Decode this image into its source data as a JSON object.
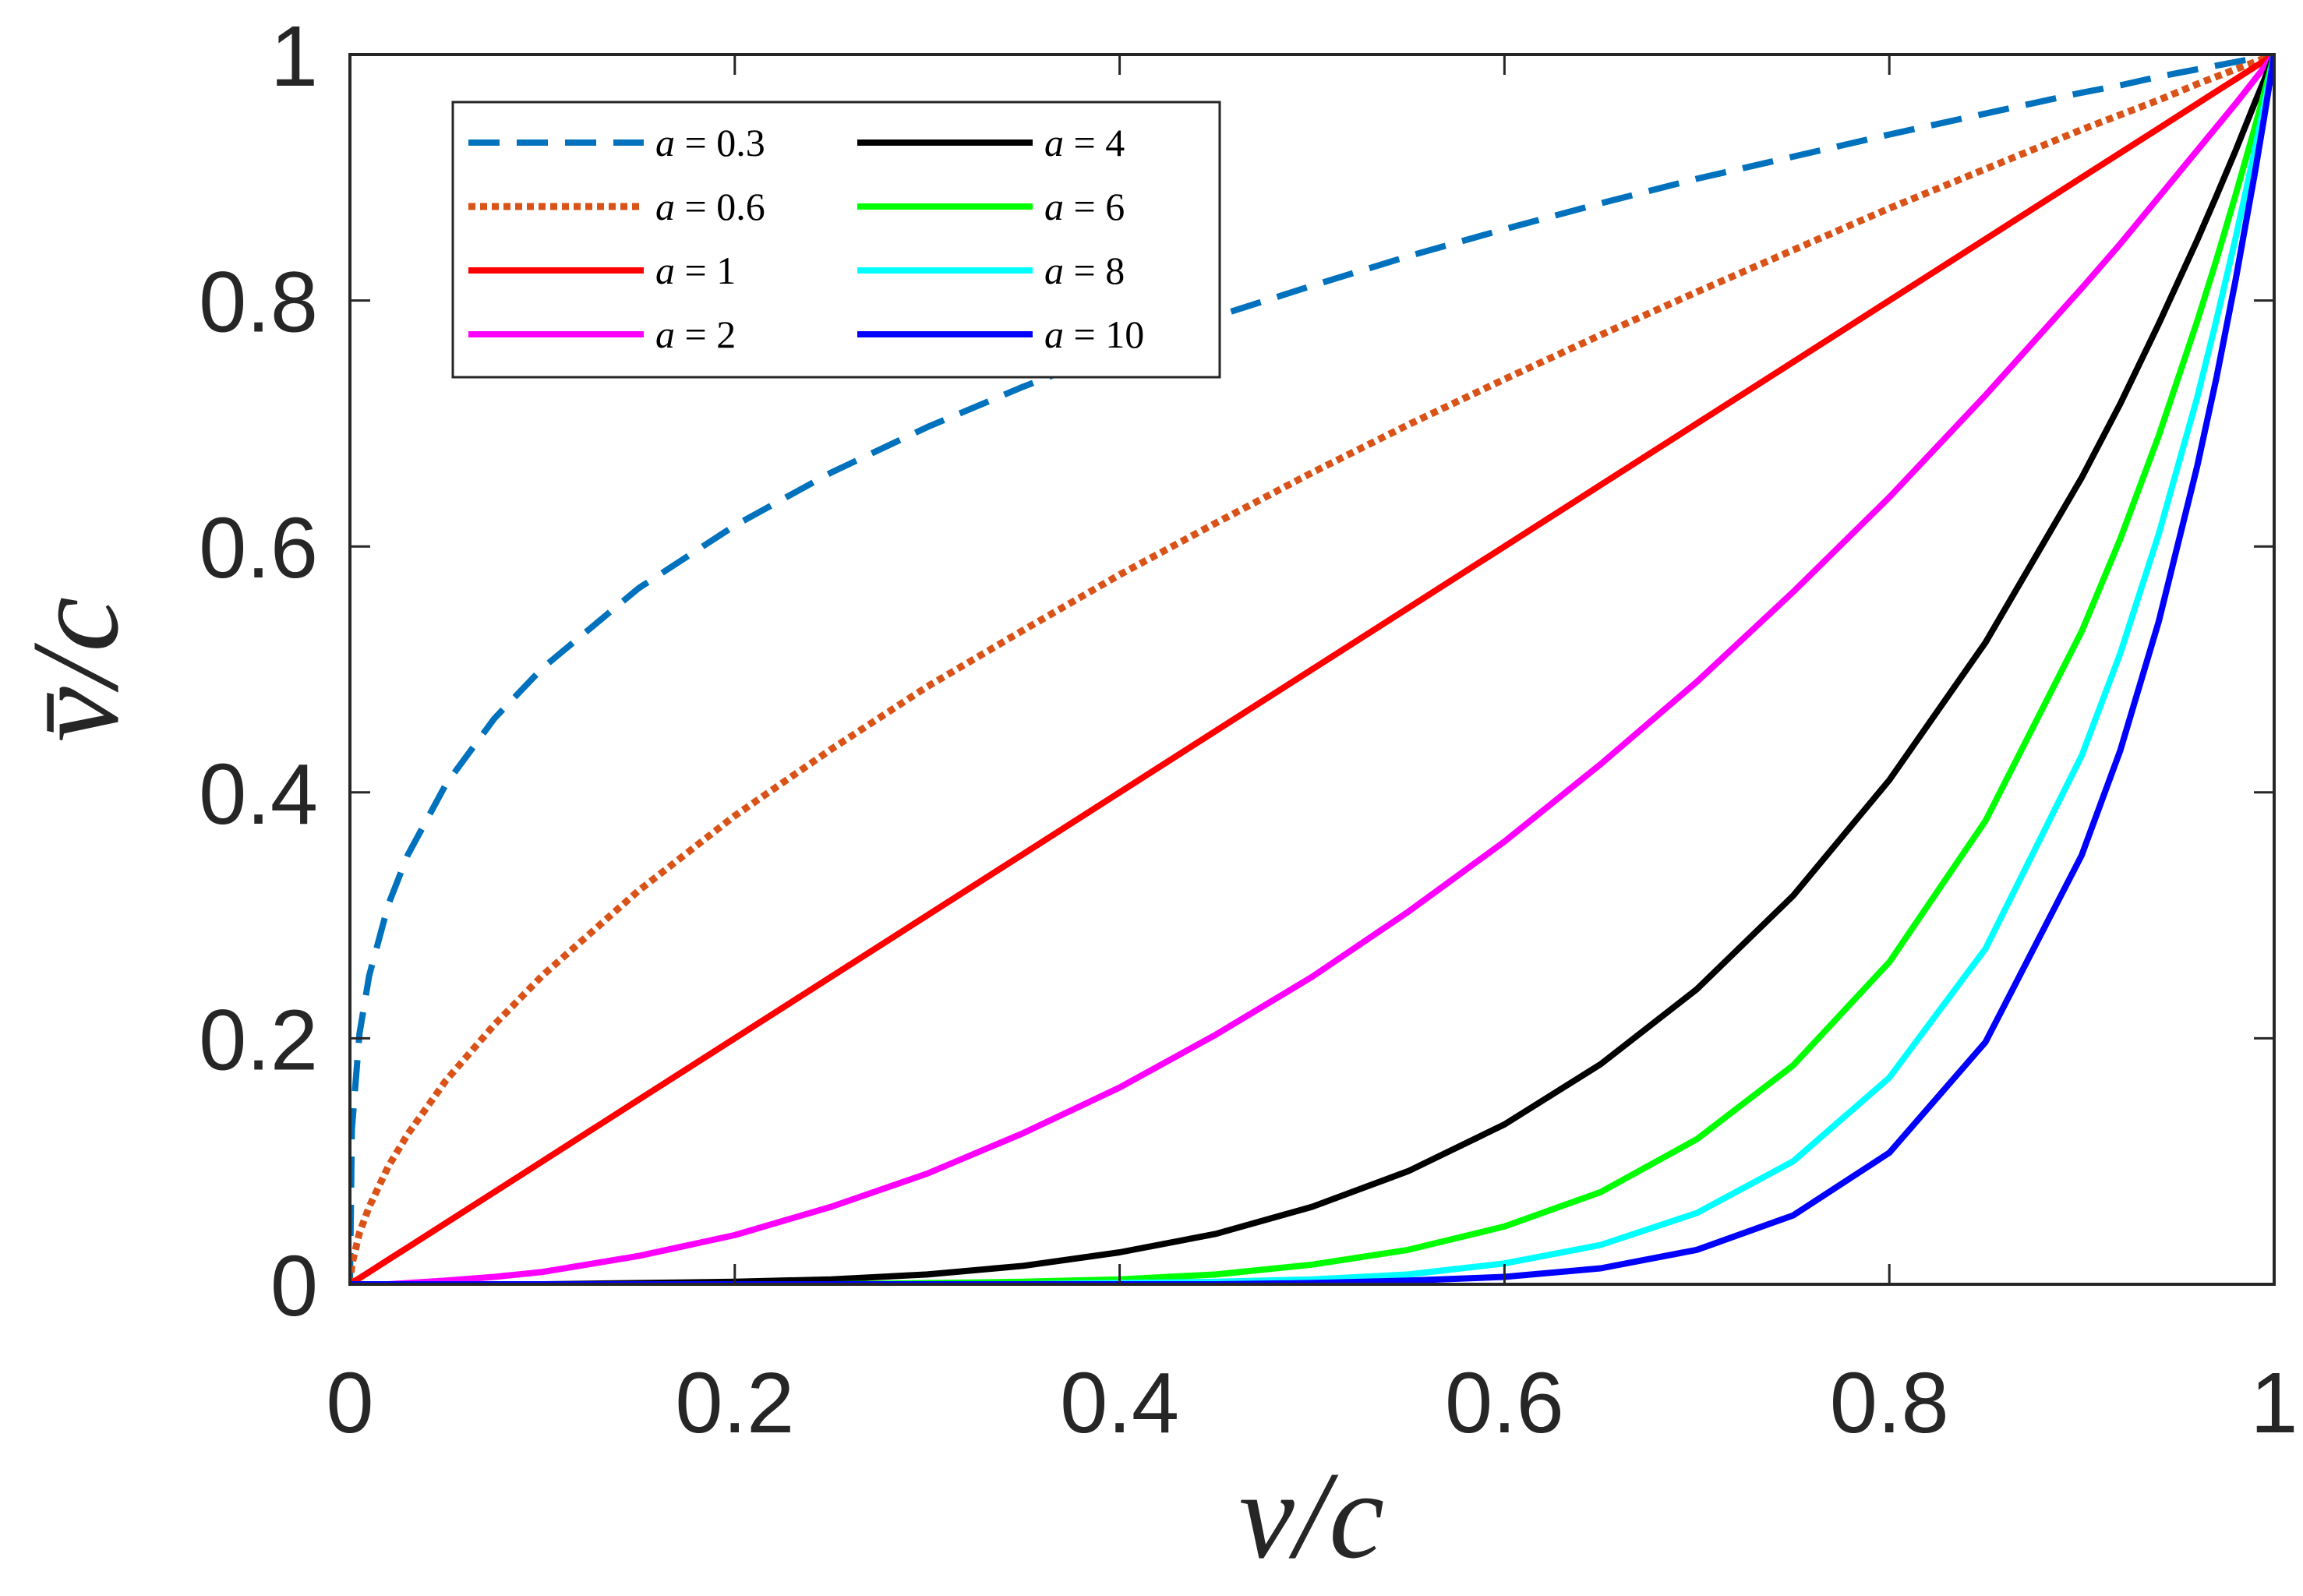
{
  "chart_data": {
    "type": "line",
    "title": "",
    "xlabel": "v/c",
    "ylabel": "v̄/c",
    "xlim": [
      0,
      1
    ],
    "ylim": [
      0,
      1
    ],
    "grid": false,
    "legend_position": "top-left",
    "legend_columns": 2,
    "x_ticks": [
      0,
      0.2,
      0.4,
      0.6,
      0.8,
      1
    ],
    "x_tick_labels": [
      "0",
      "0.2",
      "0.4",
      "0.6",
      "0.8",
      "1"
    ],
    "y_ticks": [
      0,
      0.2,
      0.4,
      0.6,
      0.8,
      1
    ],
    "y_tick_labels": [
      "0",
      "0.2",
      "0.4",
      "0.6",
      "0.8",
      "1"
    ],
    "x": [
      0,
      0.001,
      0.005,
      0.01,
      0.02,
      0.03,
      0.05,
      0.075,
      0.1,
      0.15,
      0.2,
      0.25,
      0.3,
      0.35,
      0.4,
      0.45,
      0.5,
      0.55,
      0.6,
      0.65,
      0.7,
      0.75,
      0.8,
      0.85,
      0.9,
      0.92,
      0.94,
      0.96,
      0.97,
      0.98,
      0.99,
      0.995,
      1.0
    ],
    "series": [
      {
        "name": "a = 0.3",
        "label_var": "a",
        "label_rest": " = 0.3",
        "color": "#0072BD",
        "dash": "dashed",
        "values": [
          0,
          0.126,
          0.204,
          0.251,
          0.309,
          0.349,
          0.407,
          0.46,
          0.501,
          0.566,
          0.617,
          0.66,
          0.697,
          0.73,
          0.76,
          0.787,
          0.812,
          0.836,
          0.858,
          0.879,
          0.899,
          0.917,
          0.935,
          0.952,
          0.969,
          0.975,
          0.982,
          0.988,
          0.991,
          0.994,
          0.997,
          0.998,
          1.0
        ]
      },
      {
        "name": "a = 0.6",
        "label_var": "a",
        "label_rest": " = 0.6",
        "color": "#D95319",
        "dash": "dotted",
        "values": [
          0,
          0.016,
          0.042,
          0.063,
          0.096,
          0.122,
          0.166,
          0.211,
          0.251,
          0.32,
          0.381,
          0.435,
          0.486,
          0.532,
          0.577,
          0.619,
          0.66,
          0.699,
          0.736,
          0.772,
          0.807,
          0.841,
          0.875,
          0.907,
          0.939,
          0.951,
          0.963,
          0.976,
          0.982,
          0.988,
          0.994,
          0.997,
          1.0
        ]
      },
      {
        "name": "a = 1",
        "label_var": "a",
        "label_rest": " = 1",
        "color": "#FF0000",
        "dash": "solid",
        "values": [
          0,
          0.001,
          0.005,
          0.01,
          0.02,
          0.03,
          0.05,
          0.075,
          0.1,
          0.15,
          0.2,
          0.25,
          0.3,
          0.35,
          0.4,
          0.45,
          0.5,
          0.55,
          0.6,
          0.65,
          0.7,
          0.75,
          0.8,
          0.85,
          0.9,
          0.92,
          0.94,
          0.96,
          0.97,
          0.98,
          0.99,
          0.995,
          1.0
        ]
      },
      {
        "name": "a = 2",
        "label_var": "a",
        "label_rest": " = 2",
        "color": "#FF00FF",
        "dash": "solid",
        "values": [
          0,
          0.0,
          0.0,
          0.0,
          0.0,
          0.001,
          0.003,
          0.006,
          0.01,
          0.023,
          0.04,
          0.063,
          0.09,
          0.123,
          0.16,
          0.203,
          0.25,
          0.303,
          0.36,
          0.423,
          0.49,
          0.563,
          0.64,
          0.723,
          0.81,
          0.846,
          0.884,
          0.922,
          0.941,
          0.96,
          0.98,
          0.99,
          1.0
        ]
      },
      {
        "name": "a = 4",
        "label_var": "a",
        "label_rest": " = 4",
        "color": "#000000",
        "dash": "solid",
        "values": [
          0,
          0,
          0,
          0,
          0,
          0,
          0.0,
          0.0,
          0.0,
          0.001,
          0.002,
          0.004,
          0.008,
          0.015,
          0.026,
          0.041,
          0.063,
          0.092,
          0.13,
          0.179,
          0.24,
          0.316,
          0.41,
          0.522,
          0.656,
          0.716,
          0.781,
          0.849,
          0.885,
          0.922,
          0.961,
          0.98,
          1.0
        ]
      },
      {
        "name": "a = 6",
        "label_var": "a",
        "label_rest": " = 6",
        "color": "#00FF00",
        "dash": "solid",
        "values": [
          0,
          0,
          0,
          0,
          0,
          0,
          0,
          0,
          0.0,
          0.0,
          0.0,
          0.0,
          0.001,
          0.002,
          0.004,
          0.008,
          0.016,
          0.028,
          0.047,
          0.075,
          0.118,
          0.178,
          0.262,
          0.377,
          0.531,
          0.606,
          0.69,
          0.783,
          0.833,
          0.886,
          0.941,
          0.97,
          1.0
        ]
      },
      {
        "name": "a = 8",
        "label_var": "a",
        "label_rest": " = 8",
        "color": "#00FFFF",
        "dash": "solid",
        "values": [
          0,
          0,
          0,
          0,
          0,
          0,
          0,
          0,
          0,
          0.0,
          0.0,
          0.0,
          0.0,
          0.0,
          0.001,
          0.002,
          0.004,
          0.008,
          0.017,
          0.032,
          0.058,
          0.1,
          0.168,
          0.273,
          0.43,
          0.513,
          0.61,
          0.721,
          0.784,
          0.851,
          0.923,
          0.961,
          1.0
        ]
      },
      {
        "name": "a = 10",
        "label_var": "a",
        "label_rest": " = 10",
        "color": "#0000FF",
        "dash": "solid",
        "values": [
          0,
          0,
          0,
          0,
          0,
          0,
          0,
          0,
          0,
          0,
          0.0,
          0.0,
          0.0,
          0.0,
          0.0,
          0.0,
          0.001,
          0.003,
          0.006,
          0.013,
          0.028,
          0.056,
          0.107,
          0.197,
          0.349,
          0.434,
          0.539,
          0.665,
          0.737,
          0.817,
          0.904,
          0.951,
          1.0
        ]
      }
    ]
  }
}
